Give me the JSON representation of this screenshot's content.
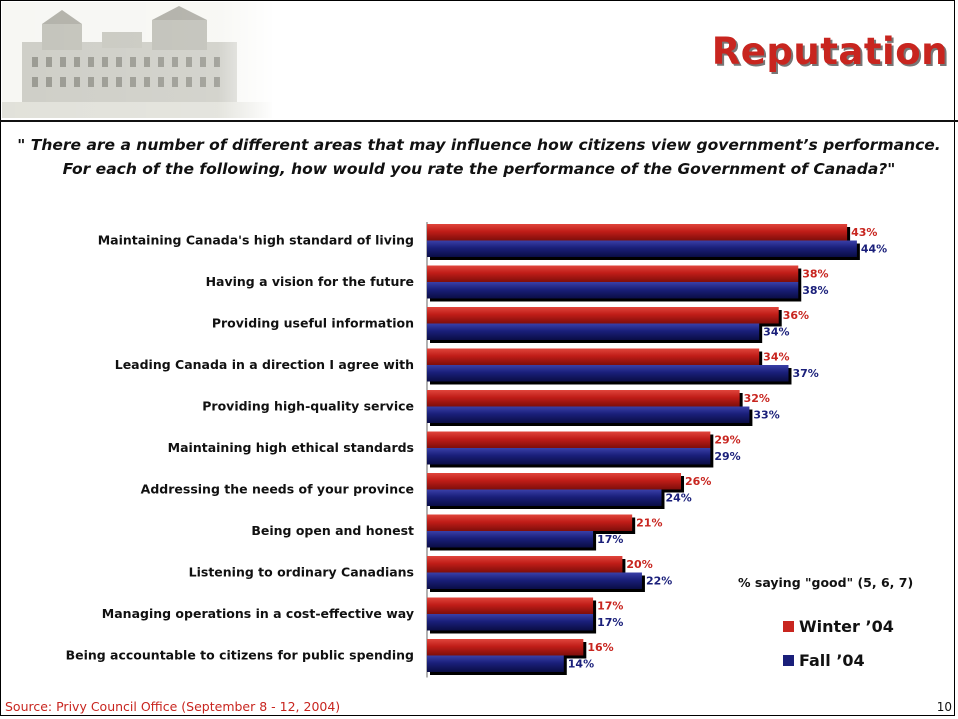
{
  "slide": {
    "title": "Reputation",
    "question_line1": "\" There are a number of different areas that may influence how citizens view government’s performance.",
    "question_line2": "For each of the following, how would you rate the performance of the Government of Canada?\"",
    "source": "Source: Privy Council Office (September 8 - 12, 2004)",
    "page_number": "10"
  },
  "colors": {
    "winter": "#c8251f",
    "fall": "#1a1f7a",
    "title": "#c8251f"
  },
  "chart_data": {
    "type": "bar",
    "orientation": "horizontal",
    "note": "% saying \"good\" (5, 6, 7)",
    "categories": [
      "Maintaining Canada's high standard of living",
      "Having a vision for the future",
      "Providing useful information",
      "Leading Canada in a direction I agree with",
      "Providing high-quality service",
      "Maintaining high ethical standards",
      "Addressing the needs of your province",
      "Being open and honest",
      "Listening to ordinary Canadians",
      "Managing operations in a cost-effective way",
      "Being accountable to citizens for public spending"
    ],
    "series": [
      {
        "name": "Winter ’04",
        "values": [
          43,
          38,
          36,
          34,
          32,
          29,
          26,
          21,
          20,
          17,
          16
        ]
      },
      {
        "name": "Fall ’04",
        "values": [
          44,
          38,
          34,
          37,
          33,
          29,
          24,
          17,
          22,
          17,
          14
        ]
      }
    ],
    "value_labels": [
      [
        "43%",
        "38%",
        "36%",
        "34%",
        "32%",
        "29%",
        "26%",
        "21%",
        "20%",
        "17%",
        "16%"
      ],
      [
        "44%",
        "38%",
        "34%",
        "37%",
        "33%",
        "29%",
        "24%",
        "17%",
        "22%",
        "17%",
        "14%"
      ]
    ],
    "xlim": [
      0,
      44
    ],
    "grid": false,
    "legend_position": "bottom-right"
  }
}
